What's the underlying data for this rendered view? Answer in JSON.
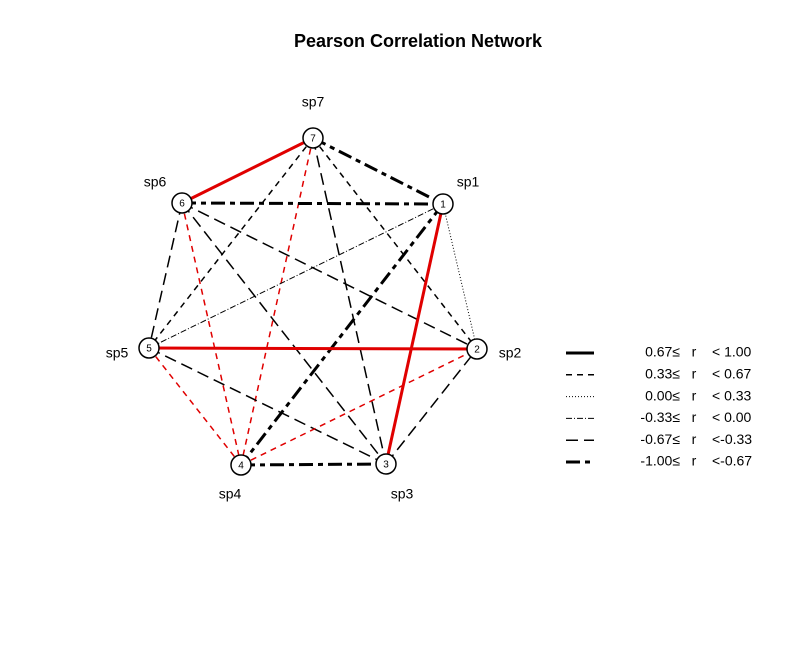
{
  "title": "Pearson Correlation Network",
  "nodes": [
    {
      "id": "1",
      "label": "sp1"
    },
    {
      "id": "2",
      "label": "sp2"
    },
    {
      "id": "3",
      "label": "sp3"
    },
    {
      "id": "4",
      "label": "sp4"
    },
    {
      "id": "5",
      "label": "sp5"
    },
    {
      "id": "6",
      "label": "sp6"
    },
    {
      "id": "7",
      "label": "sp7"
    }
  ],
  "edges": [
    {
      "from": "7",
      "to": "6",
      "legend_row": 0,
      "color": "#e00000"
    },
    {
      "from": "7",
      "to": "1",
      "legend_row": 5,
      "color": "#000000"
    },
    {
      "from": "7",
      "to": "4",
      "legend_row": 1,
      "color": "#e00000"
    },
    {
      "from": "7",
      "to": "5",
      "legend_row": 1,
      "color": "#000000"
    },
    {
      "from": "7",
      "to": "2",
      "legend_row": 1,
      "color": "#000000"
    },
    {
      "from": "7",
      "to": "3",
      "legend_row": 4,
      "color": "#000000"
    },
    {
      "from": "6",
      "to": "1",
      "legend_row": 5,
      "color": "#000000"
    },
    {
      "from": "6",
      "to": "2",
      "legend_row": 4,
      "color": "#000000"
    },
    {
      "from": "6",
      "to": "3",
      "legend_row": 4,
      "color": "#000000"
    },
    {
      "from": "6",
      "to": "4",
      "legend_row": 1,
      "color": "#e00000"
    },
    {
      "from": "6",
      "to": "5",
      "legend_row": 4,
      "color": "#000000"
    },
    {
      "from": "1",
      "to": "5",
      "legend_row": 3,
      "color": "#000000"
    },
    {
      "from": "1",
      "to": "2",
      "legend_row": 2,
      "color": "#000000"
    },
    {
      "from": "1",
      "to": "3",
      "legend_row": 0,
      "color": "#e00000"
    },
    {
      "from": "1",
      "to": "4",
      "legend_row": 5,
      "color": "#000000"
    },
    {
      "from": "5",
      "to": "2",
      "legend_row": 0,
      "color": "#e00000"
    },
    {
      "from": "5",
      "to": "4",
      "legend_row": 1,
      "color": "#e00000"
    },
    {
      "from": "5",
      "to": "3",
      "legend_row": 4,
      "color": "#000000"
    },
    {
      "from": "4",
      "to": "2",
      "legend_row": 1,
      "color": "#e00000"
    },
    {
      "from": "4",
      "to": "3",
      "legend_row": 5,
      "color": "#000000"
    },
    {
      "from": "3",
      "to": "2",
      "legend_row": 4,
      "color": "#000000"
    }
  ],
  "legend": [
    {
      "lower": "0.67≤",
      "symbol": "r",
      "upper": "< 1.00"
    },
    {
      "lower": "0.33≤",
      "symbol": "r",
      "upper": "< 0.67"
    },
    {
      "lower": "0.00≤",
      "symbol": "r",
      "upper": "< 0.33"
    },
    {
      "lower": "-0.33≤",
      "symbol": "r",
      "upper": "< 0.00"
    },
    {
      "lower": "-0.67≤",
      "symbol": "r",
      "upper": "<-0.33"
    },
    {
      "lower": "-1.00≤",
      "symbol": "r",
      "upper": "<-0.67"
    }
  ]
}
